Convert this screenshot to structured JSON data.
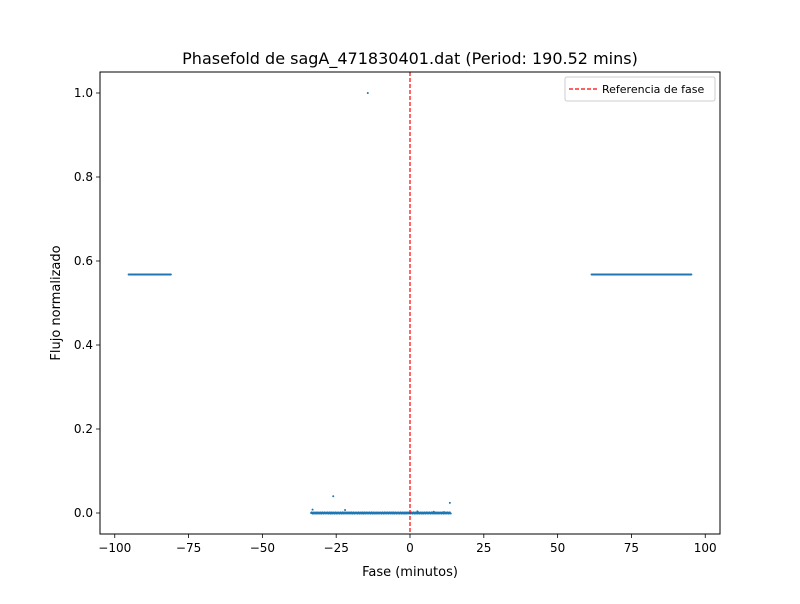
{
  "chart_data": {
    "type": "scatter",
    "title": "Phasefold de sagA_471830401.dat (Period: 190.52 mins)",
    "xlabel": "Fase (minutos)",
    "ylabel": "Flujo normalizado",
    "xlim": [
      -105,
      105
    ],
    "ylim": [
      -0.05,
      1.05
    ],
    "xticks": [
      -100,
      -75,
      -50,
      -25,
      0,
      25,
      50,
      75,
      100
    ],
    "xtick_labels": [
      "−100",
      "−75",
      "−50",
      "−25",
      "0",
      "25",
      "50",
      "75",
      "100"
    ],
    "yticks": [
      0.0,
      0.2,
      0.4,
      0.6,
      0.8,
      1.0
    ],
    "ytick_labels": [
      "0.0",
      "0.2",
      "0.4",
      "0.6",
      "0.8",
      "1.0"
    ],
    "grid": false,
    "legend_position": "upper right",
    "point_color": "#1f77b4",
    "reference_line": {
      "label": "Referencia de fase",
      "x": 0,
      "color": "#ff0000",
      "style": "dashed"
    },
    "series": [
      {
        "segments": [
          {
            "x_start": -95.3,
            "x_end": -81.0,
            "y": 0.568
          },
          {
            "x_start": -33.5,
            "x_end": 13.8,
            "y": 0.0
          },
          {
            "x_start": 61.5,
            "x_end": 95.3,
            "y": 0.568
          }
        ],
        "outliers": [
          {
            "x": -14.3,
            "y": 1.0
          },
          {
            "x": -26.0,
            "y": 0.04
          },
          {
            "x": 13.5,
            "y": 0.024
          },
          {
            "x": -33.0,
            "y": 0.008
          },
          {
            "x": -22.0,
            "y": 0.007
          },
          {
            "x": 2.5,
            "y": 0.004
          },
          {
            "x": 8.0,
            "y": 0.003
          },
          {
            "x": 11.5,
            "y": 0.002
          }
        ]
      }
    ]
  }
}
